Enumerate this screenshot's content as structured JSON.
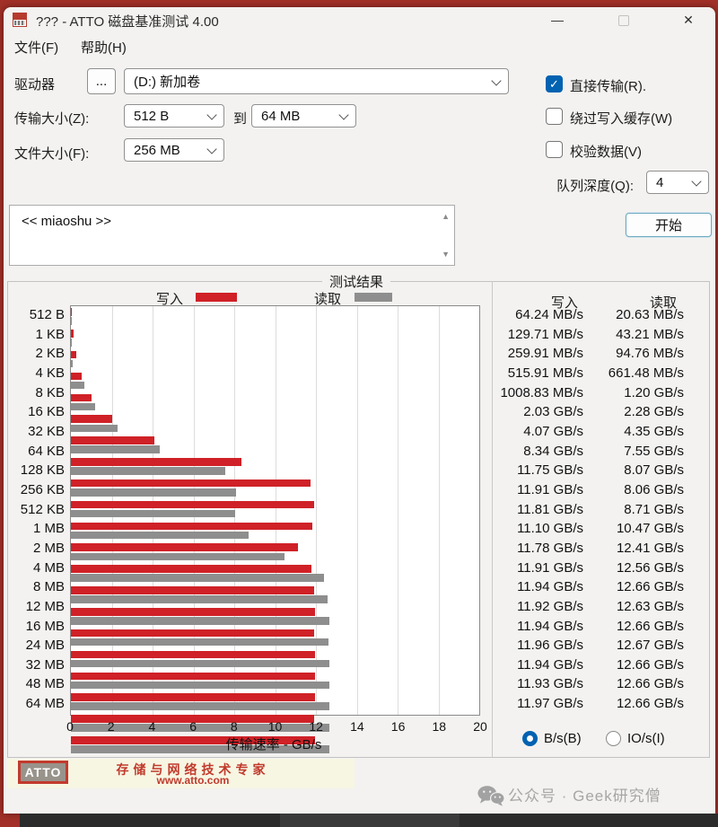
{
  "window": {
    "title": "??? - ATTO 磁盘基准测试 4.00",
    "controls": {
      "minimize": "—",
      "close": "✕"
    }
  },
  "menu": {
    "file": "文件(F)",
    "help": "帮助(H)"
  },
  "form": {
    "drive_label": "驱动器",
    "browse_button": "...",
    "drive_value": "(D:) 新加卷",
    "transfer_size_label": "传输大小(Z):",
    "transfer_min": "512 B",
    "to_label": "到",
    "transfer_max": "64 MB",
    "file_size_label": "文件大小(F):",
    "file_size_value": "256 MB",
    "queue_depth_label": "队列深度(Q):",
    "queue_depth_value": "4",
    "direct_io": {
      "label": "直接传输(R).",
      "checked": true
    },
    "bypass_write_cache": {
      "label": "绕过写入缓存(W)",
      "checked": false
    },
    "verify_data": {
      "label": "校验数据(V)",
      "checked": false
    },
    "description_value": "<< miaoshu >>",
    "start_button": "开始"
  },
  "results": {
    "group_title": "测试结果",
    "legend": {
      "write": "写入",
      "read": "读取"
    },
    "table": {
      "write_header": "写入",
      "read_header": "读取"
    },
    "units": {
      "bs_label": "B/s(B)",
      "ios_label": "IO/s(I)",
      "selected": "bs"
    }
  },
  "chart_data": {
    "type": "bar",
    "orientation": "horizontal",
    "title": "测试结果",
    "xlabel": "传输速率 - GB/s",
    "xlim": [
      0,
      20
    ],
    "xticks": [
      0,
      2,
      4,
      6,
      8,
      10,
      12,
      14,
      16,
      18,
      20
    ],
    "grid": true,
    "legend_position": "top",
    "categories": [
      "512 B",
      "1 KB",
      "2 KB",
      "4 KB",
      "8 KB",
      "16 KB",
      "32 KB",
      "64 KB",
      "128 KB",
      "256 KB",
      "512 KB",
      "1 MB",
      "2 MB",
      "4 MB",
      "8 MB",
      "12 MB",
      "16 MB",
      "24 MB",
      "32 MB",
      "48 MB",
      "64 MB"
    ],
    "series": [
      {
        "name": "写入",
        "color": "#cf2127",
        "values_gbps": [
          0.064,
          0.13,
          0.26,
          0.516,
          1.009,
          2.03,
          4.07,
          8.34,
          11.75,
          11.91,
          11.81,
          11.1,
          11.78,
          11.91,
          11.94,
          11.92,
          11.94,
          11.96,
          11.94,
          11.93,
          11.97
        ],
        "labels": [
          "64.24 MB/s",
          "129.71 MB/s",
          "259.91 MB/s",
          "515.91 MB/s",
          "1008.83 MB/s",
          "2.03 GB/s",
          "4.07 GB/s",
          "8.34 GB/s",
          "11.75 GB/s",
          "11.91 GB/s",
          "11.81 GB/s",
          "11.10 GB/s",
          "11.78 GB/s",
          "11.91 GB/s",
          "11.94 GB/s",
          "11.92 GB/s",
          "11.94 GB/s",
          "11.96 GB/s",
          "11.94 GB/s",
          "11.93 GB/s",
          "11.97 GB/s"
        ]
      },
      {
        "name": "读取",
        "color": "#8e8e8e",
        "values_gbps": [
          0.021,
          0.043,
          0.095,
          0.661,
          1.2,
          2.28,
          4.35,
          7.55,
          8.07,
          8.06,
          8.71,
          10.47,
          12.41,
          12.56,
          12.66,
          12.63,
          12.66,
          12.67,
          12.66,
          12.66,
          12.66
        ],
        "labels": [
          "20.63 MB/s",
          "43.21 MB/s",
          "94.76 MB/s",
          "661.48 MB/s",
          "1.20 GB/s",
          "2.28 GB/s",
          "4.35 GB/s",
          "7.55 GB/s",
          "8.07 GB/s",
          "8.06 GB/s",
          "8.71 GB/s",
          "10.47 GB/s",
          "12.41 GB/s",
          "12.56 GB/s",
          "12.66 GB/s",
          "12.63 GB/s",
          "12.66 GB/s",
          "12.67 GB/s",
          "12.66 GB/s",
          "12.66 GB/s",
          "12.66 GB/s"
        ]
      }
    ]
  },
  "footer": {
    "logo": "ATTO",
    "tagline": "存储与网络技术专家",
    "url": "www.atto.com"
  },
  "watermark": {
    "text": "公众号 · Geek研究僧"
  },
  "colors": {
    "accent_blue": "#0062b1",
    "write_red": "#cf2127",
    "read_gray": "#8e8e8e",
    "desktop_red": "#a23028"
  }
}
